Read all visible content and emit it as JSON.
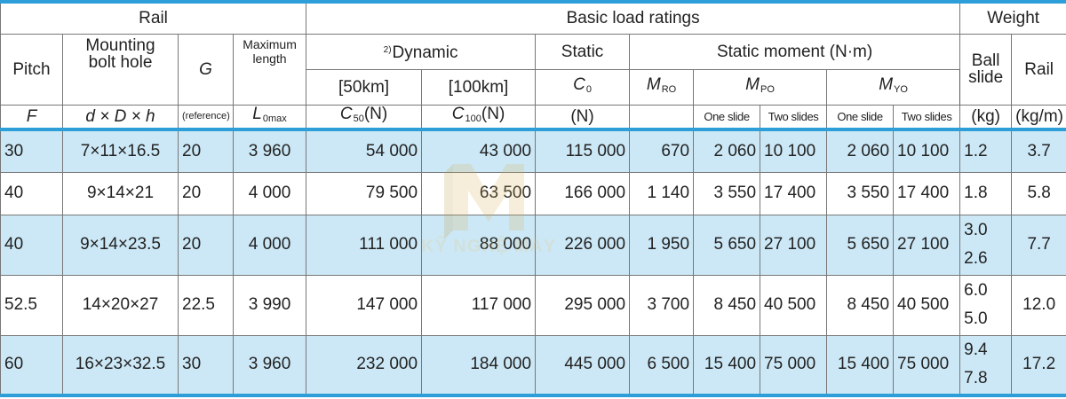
{
  "header": {
    "rail": "Rail",
    "basic_load_ratings": "Basic load ratings",
    "weight": "Weight",
    "pitch": "Pitch",
    "pitch_symbol": "F",
    "mounting_bolt_hole_line1": "Mounting",
    "mounting_bolt_hole_line2": "bolt hole",
    "mounting_symbol": "d × D × h",
    "g": "G",
    "g_note": "(reference)",
    "max_length_line1": "Maximum",
    "max_length_line2": "length",
    "max_length_symbol": "L",
    "max_length_sub": "0max",
    "dynamic_note": "2)",
    "dynamic": "Dynamic",
    "static_moment": "Static moment (N·m)",
    "static": "Static",
    "ball_slide_line1": "Ball",
    "ball_slide_line2": "slide",
    "rail_weight": "Rail",
    "km50": "[50km]",
    "km100": "[100km]",
    "c0_symbol": "C",
    "c0_sub": "0",
    "mro_symbol": "M",
    "mro_sub": "RO",
    "mpo_symbol": "M",
    "mpo_sub": "PO",
    "myo_symbol": "M",
    "myo_sub": "YO",
    "c50_symbol": "C",
    "c50_sub": "50",
    "c50_unit": "(N)",
    "c100_symbol": "C",
    "c100_sub": "100",
    "c100_unit": "(N)",
    "c0_unit": "(N)",
    "one_slide": "One slide",
    "two_slides": "Two slides",
    "kg": "(kg)",
    "kgm": "(kg/m)"
  },
  "rows": [
    {
      "pitch": "30",
      "bolt": "7×11×16.5",
      "g": "20",
      "length": "3 960",
      "c50": "54 000",
      "c100": "43 000",
      "c0": "115 000",
      "mro": "670",
      "mpo1": "2 060",
      "mpo2": "10 100",
      "myo1": "2 060",
      "myo2": "10 100",
      "ball": [
        "1.2"
      ],
      "rail": "3.7"
    },
    {
      "pitch": "40",
      "bolt": "9×14×21",
      "g": "20",
      "length": "4 000",
      "c50": "79 500",
      "c100": "63 500",
      "c0": "166 000",
      "mro": "1 140",
      "mpo1": "3 550",
      "mpo2": "17 400",
      "myo1": "3 550",
      "myo2": "17 400",
      "ball": [
        "1.8"
      ],
      "rail": "5.8"
    },
    {
      "pitch": "40",
      "bolt": "9×14×23.5",
      "g": "20",
      "length": "4 000",
      "c50": "111 000",
      "c100": "88 000",
      "c0": "226 000",
      "mro": "1 950",
      "mpo1": "5 650",
      "mpo2": "27 100",
      "myo1": "5 650",
      "myo2": "27 100",
      "ball": [
        "3.0",
        "2.6"
      ],
      "rail": "7.7"
    },
    {
      "pitch": "52.5",
      "bolt": "14×20×27",
      "g": "22.5",
      "length": "3 990",
      "c50": "147 000",
      "c100": "117 000",
      "c0": "295 000",
      "mro": "3 700",
      "mpo1": "8 450",
      "mpo2": "40 500",
      "myo1": "8 450",
      "myo2": "40 500",
      "ball": [
        "6.0",
        "5.0"
      ],
      "rail": "12.0"
    },
    {
      "pitch": "60",
      "bolt": "16×23×32.5",
      "g": "30",
      "length": "3 960",
      "c50": "232 000",
      "c100": "184 000",
      "c0": "445 000",
      "mro": "6 500",
      "mpo1": "15 400",
      "mpo2": "75 000",
      "myo1": "15 400",
      "myo2": "75 000",
      "ball": [
        "9.4",
        "7.8"
      ],
      "rail": "17.2"
    }
  ],
  "watermark": {
    "text": "KỸ NGHỆ MÁY",
    "color": "#e3c77a"
  },
  "colors": {
    "accent": "#2d9ed8",
    "row_shade": "#cce8f6"
  }
}
